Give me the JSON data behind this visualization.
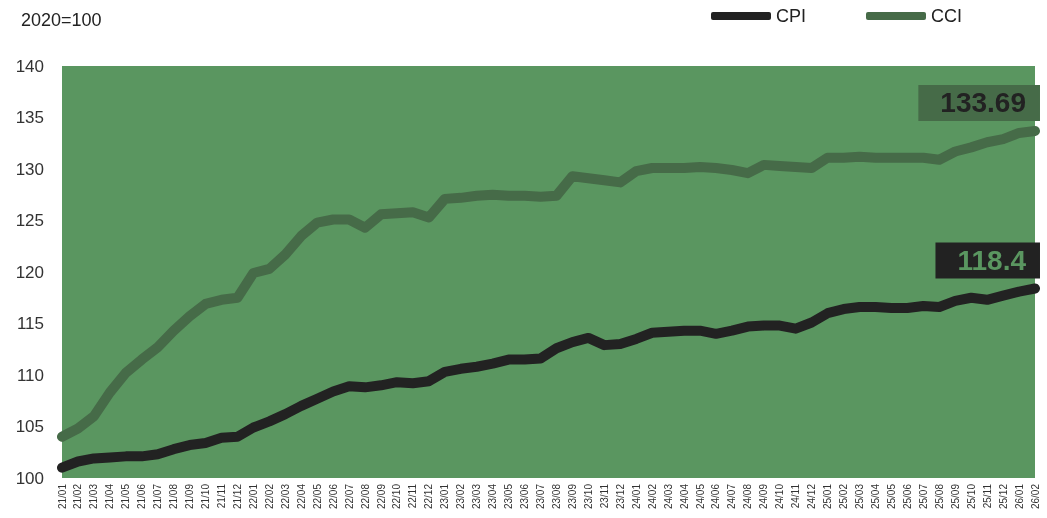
{
  "chart_data": {
    "type": "line",
    "ylabel": "2020=100",
    "categories": [
      "21/01",
      "21/02",
      "21/03",
      "21/04",
      "21/05",
      "21/06",
      "21/07",
      "21/08",
      "21/09",
      "21/10",
      "21/11",
      "21/12",
      "22/01",
      "22/02",
      "22/03",
      "22/04",
      "22/05",
      "22/06",
      "22/07",
      "22/08",
      "22/09",
      "22/10",
      "22/11",
      "22/12",
      "23/01",
      "23/02",
      "23/03",
      "23/04",
      "23/05",
      "23/06",
      "23/07",
      "23/08",
      "23/09",
      "23/10",
      "23/11",
      "23/12",
      "24/01",
      "24/02",
      "24/03",
      "24/04",
      "24/05",
      "24/06",
      "24/07",
      "24/08",
      "24/09",
      "24/10",
      "24/11",
      "24/12",
      "25/01",
      "25/02",
      "25/03",
      "25/04",
      "25/05",
      "25/06",
      "25/07",
      "25/08",
      "25/09",
      "25/10",
      "25/11",
      "25/12",
      "26/01",
      "26/02"
    ],
    "series": [
      {
        "name": "CPI",
        "color": "#222222",
        "values": [
          101.0,
          101.6,
          101.9,
          102.0,
          102.1,
          102.1,
          102.3,
          102.8,
          103.2,
          103.4,
          103.9,
          104.0,
          104.9,
          105.5,
          106.2,
          107.0,
          107.7,
          108.4,
          108.9,
          108.8,
          109.0,
          109.3,
          109.2,
          109.4,
          110.3,
          110.6,
          110.8,
          111.1,
          111.5,
          111.5,
          111.6,
          112.6,
          113.2,
          113.6,
          112.9,
          113.0,
          113.5,
          114.1,
          114.2,
          114.3,
          114.3,
          114.0,
          114.3,
          114.7,
          114.8,
          114.8,
          114.5,
          115.1,
          116.0,
          116.4,
          116.6,
          116.6,
          116.5,
          116.5,
          116.7,
          116.6,
          117.2,
          117.5,
          117.3,
          117.7,
          118.1,
          118.4
        ],
        "value_labels": [
          null,
          null,
          null,
          null,
          null,
          null,
          null,
          null,
          null,
          null,
          null,
          null,
          null,
          null,
          null,
          null,
          null,
          null,
          null,
          null,
          null,
          null,
          null,
          null,
          null,
          null,
          null,
          null,
          null,
          null,
          null,
          null,
          null,
          null,
          null,
          null,
          null,
          null,
          null,
          null,
          null,
          null,
          null,
          null,
          null,
          null,
          null,
          null,
          null,
          null,
          null,
          null,
          null,
          null,
          null,
          null,
          null,
          null,
          null,
          null,
          null,
          "118.4"
        ]
      },
      {
        "name": "CCI",
        "color": "#466b48",
        "values": [
          104.0,
          104.8,
          106.0,
          108.3,
          110.2,
          111.5,
          112.7,
          114.3,
          115.7,
          116.9,
          117.3,
          117.5,
          119.9,
          120.3,
          121.7,
          123.5,
          124.8,
          125.1,
          125.1,
          124.3,
          125.6,
          125.7,
          125.8,
          125.3,
          127.1,
          127.2,
          127.4,
          127.5,
          127.4,
          127.4,
          127.3,
          127.4,
          129.3,
          129.1,
          128.9,
          128.7,
          129.8,
          130.1,
          130.1,
          130.1,
          130.2,
          130.1,
          129.9,
          129.6,
          130.4,
          130.3,
          130.2,
          130.1,
          131.1,
          131.1,
          131.2,
          131.1,
          131.1,
          131.1,
          131.1,
          130.9,
          131.7,
          132.1,
          132.6,
          132.9,
          133.5,
          133.69
        ],
        "value_labels": [
          null,
          null,
          null,
          null,
          null,
          null,
          null,
          null,
          null,
          null,
          null,
          null,
          null,
          null,
          null,
          null,
          null,
          null,
          null,
          null,
          null,
          null,
          null,
          null,
          null,
          null,
          null,
          null,
          null,
          null,
          null,
          null,
          null,
          null,
          null,
          null,
          null,
          null,
          null,
          null,
          null,
          null,
          null,
          null,
          null,
          null,
          null,
          null,
          null,
          null,
          null,
          null,
          null,
          null,
          null,
          null,
          null,
          null,
          null,
          null,
          null,
          "133.69"
        ]
      }
    ],
    "ylim": [
      100,
      140
    ],
    "yticks": [
      100,
      105,
      110,
      115,
      120,
      125,
      130,
      135,
      140
    ],
    "grid": false,
    "legend": "top right",
    "line_style": "solid"
  }
}
